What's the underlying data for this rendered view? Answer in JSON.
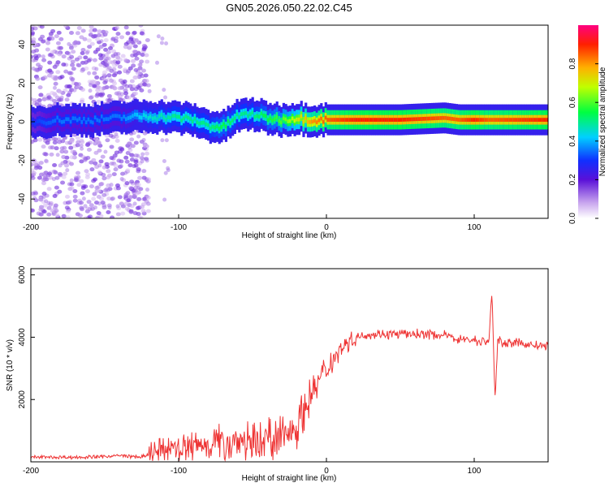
{
  "title": "GN05.2026.050.22.02.C45",
  "chart_data": [
    {
      "type": "heatmap",
      "name": "spectrogram",
      "xlabel": "Height of straight line (km)",
      "ylabel": "Frequency (Hz)",
      "xlim": [
        -200,
        150
      ],
      "ylim": [
        -50,
        50
      ],
      "xticks": [
        -200,
        -100,
        0,
        100
      ],
      "yticks": [
        -40,
        -20,
        0,
        20,
        40
      ],
      "colorbar": {
        "label": "Normalized spectral amplitude",
        "range": [
          0,
          1
        ],
        "ticks": [
          "0.0",
          "0.2",
          "0.4",
          "0.6",
          "0.8"
        ]
      },
      "ridge": {
        "description": "dominant frequency track (Hz) vs height",
        "x": [
          -200,
          -180,
          -160,
          -140,
          -120,
          -100,
          -90,
          -80,
          -70,
          -60,
          -50,
          -40,
          -30,
          -20,
          -10,
          0,
          20,
          50,
          80,
          90,
          100,
          110,
          150
        ],
        "y": [
          0,
          1,
          1,
          2,
          3,
          2,
          1,
          -2,
          -3,
          3,
          4,
          2,
          1,
          2,
          1,
          1,
          1,
          1,
          2,
          1,
          1,
          1,
          1
        ],
        "amplitude": [
          0.3,
          0.35,
          0.35,
          0.35,
          0.45,
          0.5,
          0.5,
          0.5,
          0.55,
          0.5,
          0.5,
          0.55,
          0.6,
          0.7,
          0.8,
          0.85,
          0.9,
          0.9,
          0.85,
          0.85,
          0.9,
          0.85,
          0.9
        ]
      }
    },
    {
      "type": "line",
      "name": "snr",
      "xlabel": "Height of straight line (km)",
      "ylabel": "SNR (10 * v/v)",
      "xlim": [
        -200,
        150
      ],
      "ylim": [
        0,
        6200
      ],
      "xticks": [
        -200,
        -100,
        0,
        100
      ],
      "yticks": [
        2000,
        4000,
        6000
      ],
      "color": "#ee3333",
      "series": [
        {
          "name": "SNR",
          "x": [
            -200,
            -180,
            -160,
            -140,
            -125,
            -115,
            -100,
            -90,
            -80,
            -70,
            -60,
            -50,
            -40,
            -30,
            -20,
            -15,
            -10,
            -5,
            0,
            10,
            20,
            30,
            40,
            50,
            60,
            70,
            80,
            90,
            100,
            105,
            110,
            112,
            114,
            116,
            118,
            120,
            130,
            140,
            150
          ],
          "y": [
            150,
            150,
            150,
            200,
            150,
            300,
            400,
            500,
            600,
            650,
            700,
            700,
            750,
            800,
            1200,
            1700,
            2200,
            2600,
            3000,
            3700,
            4000,
            4100,
            4100,
            4100,
            4100,
            4100,
            4050,
            3950,
            3900,
            3850,
            3900,
            5500,
            2000,
            3900,
            3850,
            3850,
            3800,
            3750,
            3700
          ]
        }
      ]
    }
  ]
}
